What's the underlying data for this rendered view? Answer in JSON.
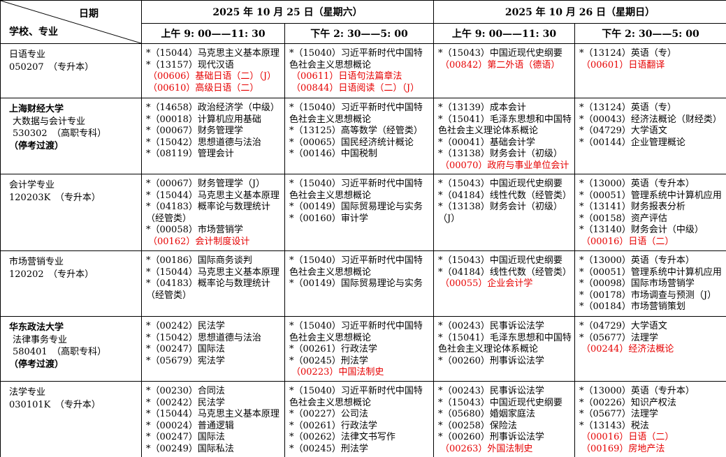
{
  "colors": {
    "course_red": "#e60000",
    "border": "#000000",
    "background": "#ffffff"
  },
  "header": {
    "corner": {
      "date_label": "日期",
      "school_label": "学校、专业"
    },
    "days": [
      {
        "date": "2025 年 10 月 25 日（星期六）",
        "sessions": [
          "上午 9: 00——11: 30",
          "下午 2: 30——5: 00"
        ]
      },
      {
        "date": "2025 年 10 月 26 日（星期日）",
        "sessions": [
          "上午 9: 00——11: 30",
          "下午 2: 30——5: 00"
        ]
      }
    ]
  },
  "rows": [
    {
      "label": [
        {
          "text": "日语专业"
        },
        {
          "text": "050207　（专升本）"
        }
      ],
      "cells": [
        [
          {
            "text": "*（15044）马克思主义基本原理"
          },
          {
            "text": "*（13157）现代汉语"
          },
          {
            "text": "（00606）基础日语（二）（J）",
            "red": true
          },
          {
            "text": "（00610）高级日语（二）",
            "red": true
          }
        ],
        [
          {
            "text": "*（15040）习近平新时代中国特色社会主义思想概论"
          },
          {
            "text": "（00611）日语句法篇章法",
            "red": true
          },
          {
            "text": "（00844）日语阅读（二）（J）",
            "red": true
          }
        ],
        [
          {
            "text": "*（15043）中国近现代史纲要"
          },
          {
            "text": "（00842）第二外语（德语）",
            "red": true
          }
        ],
        [
          {
            "text": "*（13124）英语（专）"
          },
          {
            "text": "（00601）日语翻译",
            "red": true
          }
        ]
      ]
    },
    {
      "label": [
        {
          "text": "上海财经大学",
          "bold": true
        },
        {
          "text": "大数据与会计专业",
          "sub": true
        },
        {
          "text": "530302　（高职专科）",
          "sub": true
        },
        {
          "text": "（停考过渡）",
          "bold": true
        }
      ],
      "cells": [
        [
          {
            "text": "*（14658）政治经济学（中级）"
          },
          {
            "text": "*（00018）计算机应用基础"
          },
          {
            "text": "*（00067）财务管理学"
          },
          {
            "text": "*（15042）思想道德与法治"
          },
          {
            "text": "*（08119）管理会计"
          }
        ],
        [
          {
            "text": "*（15040）习近平新时代中国特色社会主义思想概论"
          },
          {
            "text": "*（13125）高等数学（经管类）"
          },
          {
            "text": "*（00065）国民经济统计概论"
          },
          {
            "text": "*（00146）中国税制"
          }
        ],
        [
          {
            "text": "*（13139）成本会计"
          },
          {
            "text": "*（15041）毛泽东思想和中国特色社会主义理论体系概论"
          },
          {
            "text": "*（00041）基础会计学"
          },
          {
            "text": "*（13138）财务会计（初级）"
          },
          {
            "text": "（00070）政府与事业单位会计",
            "red": true
          }
        ],
        [
          {
            "text": "*（13124）英语（专）"
          },
          {
            "text": "*（00043）经济法概论（财经类）"
          },
          {
            "text": "*（04729）大学语文"
          },
          {
            "text": "*（00144）企业管理概论"
          }
        ]
      ]
    },
    {
      "label": [
        {
          "text": "会计学专业"
        },
        {
          "text": "120203K　（专升本）"
        }
      ],
      "cells": [
        [
          {
            "text": "*（00067）财务管理学（J）"
          },
          {
            "text": "*（15044）马克思主义基本原理"
          },
          {
            "text": "*（04183）概率论与数理统计（经管类）"
          },
          {
            "text": "*（00058）市场营销学"
          },
          {
            "text": "（00162）会计制度设计",
            "red": true
          }
        ],
        [
          {
            "text": "*（15040）习近平新时代中国特色社会主义思想概论"
          },
          {
            "text": "*（00149）国际贸易理论与实务"
          },
          {
            "text": "*（00160）审计学"
          }
        ],
        [
          {
            "text": "*（15043）中国近现代史纲要"
          },
          {
            "text": "*（04184）线性代数（经管类）"
          },
          {
            "text": "*（13138）财务会计（初级）（J）"
          }
        ],
        [
          {
            "text": "*（13000）英语（专升本）"
          },
          {
            "text": "*（00051）管理系统中计算机应用"
          },
          {
            "text": "*（13141）财务报表分析"
          },
          {
            "text": "*（00158）资产评估"
          },
          {
            "text": "*（13140）财务会计（中级）"
          },
          {
            "text": "（00016）日语（二）",
            "red": true
          }
        ]
      ]
    },
    {
      "label": [
        {
          "text": "市场营销专业"
        },
        {
          "text": "120202　（专升本）"
        }
      ],
      "cells": [
        [
          {
            "text": "*（00186）国际商务谈判"
          },
          {
            "text": "*（15044）马克思主义基本原理"
          },
          {
            "text": "*（04183）概率论与数理统计（经管类）"
          }
        ],
        [
          {
            "text": "*（15040）习近平新时代中国特色社会主义思想概论"
          },
          {
            "text": "*（00149）国际贸易理论与实务"
          }
        ],
        [
          {
            "text": "*（15043）中国近现代史纲要"
          },
          {
            "text": "*（04184）线性代数（经管类）"
          },
          {
            "text": "（00055）企业会计学",
            "red": true
          }
        ],
        [
          {
            "text": "*（13000）英语（专升本）"
          },
          {
            "text": "*（00051）管理系统中计算机应用"
          },
          {
            "text": "*（00098）国际市场营销学"
          },
          {
            "text": "*（00178）市场调查与预测（J）"
          },
          {
            "text": "*（00184）市场营销策划"
          }
        ]
      ]
    },
    {
      "label": [
        {
          "text": "华东政法大学",
          "bold": true
        },
        {
          "text": "法律事务专业",
          "sub": true
        },
        {
          "text": "580401　（高职专科）",
          "sub": true
        },
        {
          "text": "（停考过渡）",
          "bold": true
        }
      ],
      "cells": [
        [
          {
            "text": "*（00242）民法学"
          },
          {
            "text": "*（15042）思想道德与法治"
          },
          {
            "text": "*（00247）国际法"
          },
          {
            "text": "*（05679）宪法学"
          }
        ],
        [
          {
            "text": "*（15040）习近平新时代中国特色社会主义思想概论"
          },
          {
            "text": "*（00261）行政法学"
          },
          {
            "text": "*（00245）刑法学"
          },
          {
            "text": "（00223）中国法制史",
            "red": true
          }
        ],
        [
          {
            "text": "*（00243）民事诉讼法学"
          },
          {
            "text": "*（15041）毛泽东思想和中国特色社会主义理论体系概论"
          },
          {
            "text": "*（00260）刑事诉讼法学"
          }
        ],
        [
          {
            "text": "*（04729）大学语文"
          },
          {
            "text": "*（05677）法理学"
          },
          {
            "text": "（00244）经济法概论",
            "red": true
          }
        ]
      ]
    },
    {
      "label": [
        {
          "text": "法学专业"
        },
        {
          "text": "030101K　（专升本）"
        }
      ],
      "cells": [
        [
          {
            "text": "*（00230）合同法"
          },
          {
            "text": "*（00242）民法学"
          },
          {
            "text": "*（15044）马克思主义基本原理"
          },
          {
            "text": "*（00024）普通逻辑"
          },
          {
            "text": "*（00247）国际法"
          },
          {
            "text": "*（00249）国际私法"
          }
        ],
        [
          {
            "text": "*（15040）习近平新时代中国特色社会主义思想概论"
          },
          {
            "text": "*（00227）公司法"
          },
          {
            "text": "*（00261）行政法学"
          },
          {
            "text": "*（00262）法律文书写作"
          },
          {
            "text": "*（00245）刑法学"
          }
        ],
        [
          {
            "text": "*（00243）民事诉讼法学"
          },
          {
            "text": "*（15043）中国近现代史纲要"
          },
          {
            "text": "*（05680）婚姻家庭法"
          },
          {
            "text": "*（00258）保险法"
          },
          {
            "text": "*（00260）刑事诉讼法学"
          },
          {
            "text": "（00263）外国法制史",
            "red": true
          }
        ],
        [
          {
            "text": "*（13000）英语（专升本）"
          },
          {
            "text": "*（00226）知识产权法"
          },
          {
            "text": "*（05677）法理学"
          },
          {
            "text": "*（13143）税法"
          },
          {
            "text": "（00016）日语（二）",
            "red": true
          },
          {
            "text": "（00169）房地产法",
            "red": true
          }
        ]
      ]
    }
  ]
}
